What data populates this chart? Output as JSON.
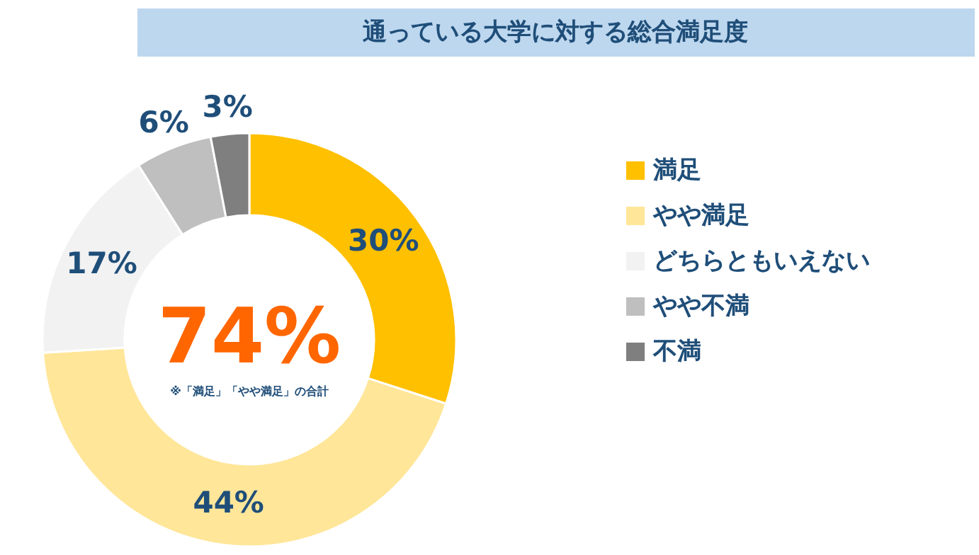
{
  "chart_data": {
    "type": "donut",
    "title": "通っている大学に対する総合満足度",
    "categories": [
      "満足",
      "やや満足",
      "どちらともいえない",
      "やや不満",
      "不満"
    ],
    "values": [
      30,
      44,
      17,
      6,
      3
    ],
    "colors": [
      "#ffc000",
      "#ffe699",
      "#f2f2f2",
      "#bfbfbf",
      "#7f7f7f"
    ],
    "value_labels": [
      "30%",
      "44%",
      "17%",
      "6%",
      "3%"
    ],
    "annotations": [
      "74%",
      "※「満足」「やや満足」の合計"
    ],
    "legend": "right"
  }
}
